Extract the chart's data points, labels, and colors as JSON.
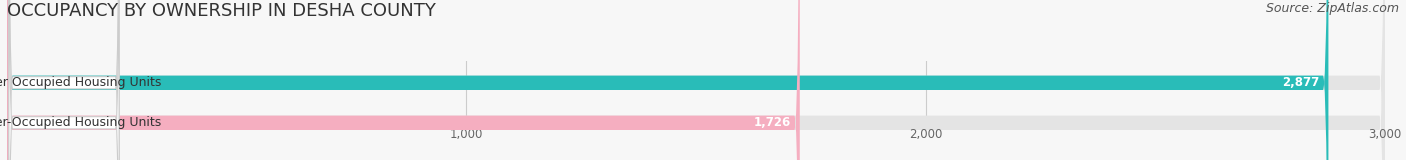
{
  "title": "OCCUPANCY BY OWNERSHIP IN DESHA COUNTY",
  "source": "Source: ZipAtlas.com",
  "categories": [
    "Owner Occupied Housing Units",
    "Renter-Occupied Housing Units"
  ],
  "values": [
    2877,
    1726
  ],
  "bar_colors": [
    "#29bcb8",
    "#f5aec0"
  ],
  "label_box_color": "#ffffff",
  "label_box_edge": "#cccccc",
  "xlim": [
    0,
    3000
  ],
  "xticks": [
    0,
    1000,
    2000,
    3000
  ],
  "xtick_labels": [
    "",
    "1,000",
    "2,000",
    "3,000"
  ],
  "title_fontsize": 13,
  "source_fontsize": 9,
  "bar_label_fontsize": 8.5,
  "category_fontsize": 9,
  "background_color": "#f7f7f7",
  "bar_background_color": "#e4e4e4",
  "value_label_color": "#ffffff",
  "grid_color": "#cccccc"
}
